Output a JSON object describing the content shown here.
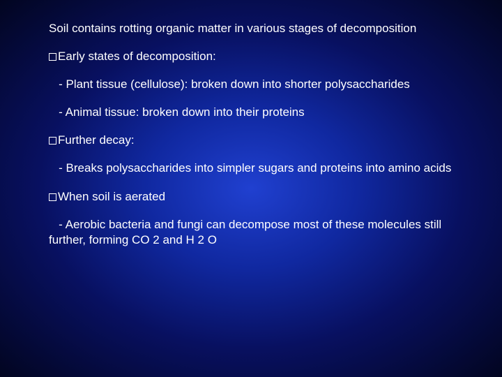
{
  "slide": {
    "background_gradient": {
      "type": "radial",
      "stops": [
        "#2040d0",
        "#1028a0",
        "#081060",
        "#020520"
      ]
    },
    "text_color": "#ffffff",
    "font_family": "Arial",
    "body_fontsize": 17,
    "line_height": 1.3,
    "para_spacing": 18,
    "bullet_box": {
      "width": 11,
      "height": 11,
      "border_color": "#ffffff",
      "border_width": 1.5
    },
    "paragraphs": {
      "p0": "Soil contains rotting organic matter in various stages of decomposition",
      "p1": "Early states of decomposition:",
      "p2": "- Plant tissue (cellulose): broken down into shorter polysaccharides",
      "p3": "- Animal tissue: broken down into their proteins",
      "p4": "Further decay:",
      "p5": "- Breaks polysaccharides into simpler sugars and proteins into amino acids",
      "p6": "When soil is aerated",
      "p7": "- Aerobic bacteria and fungi can decompose most of these molecules still further, forming CO 2 and H 2 O"
    }
  }
}
